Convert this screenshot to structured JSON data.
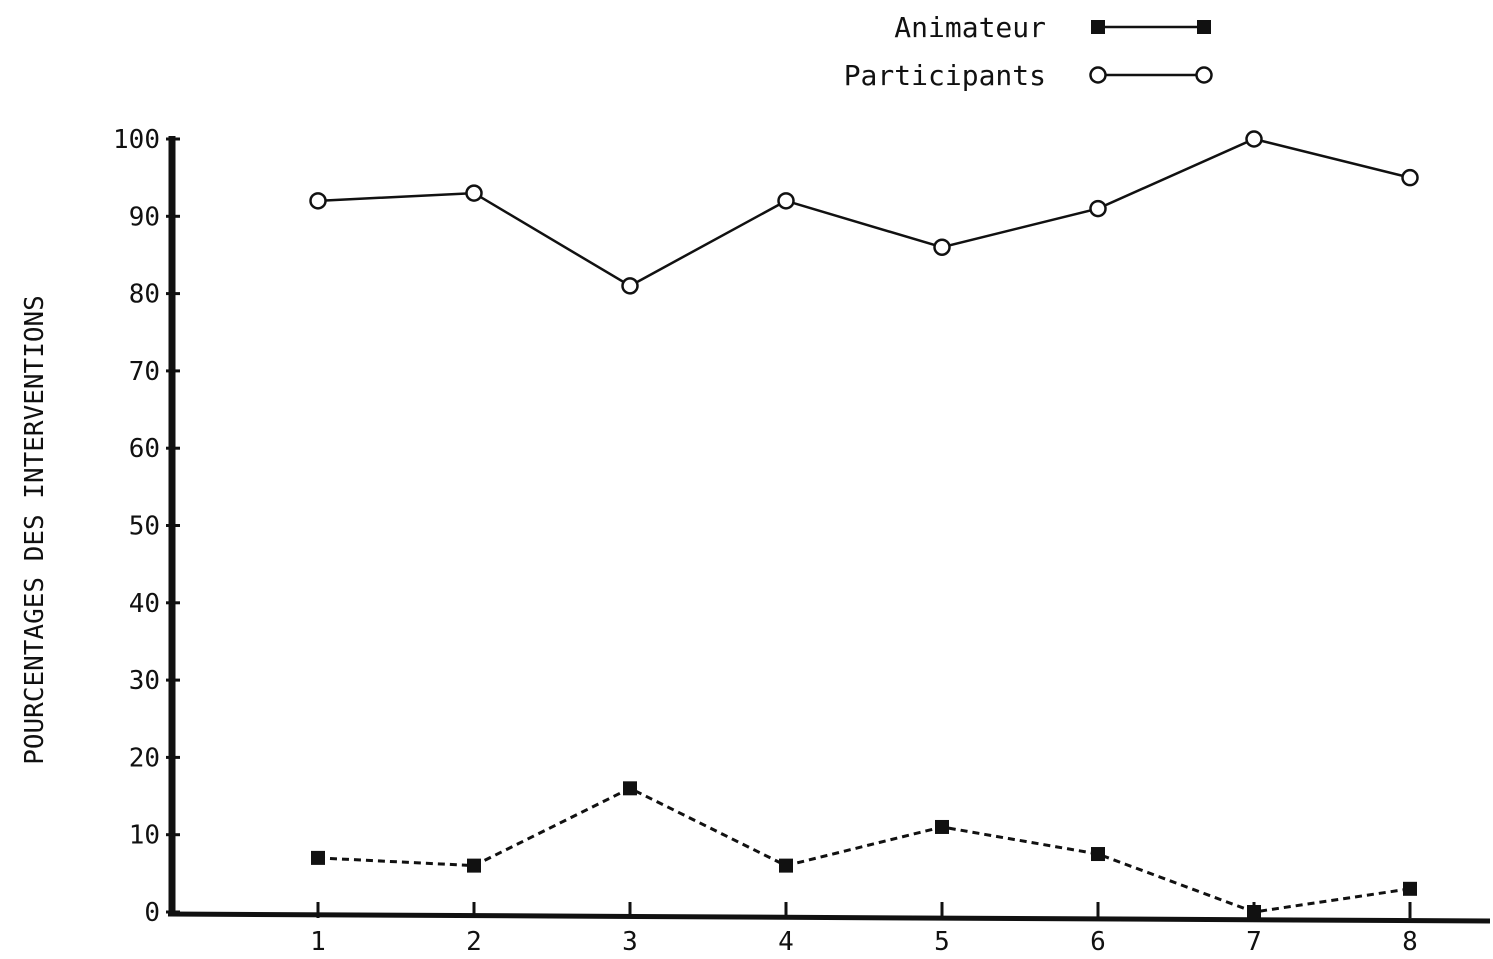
{
  "chart_data": {
    "type": "line",
    "title": "",
    "xlabel": "",
    "ylabel": "POURCENTAGES DES INTERVENTIONS",
    "x": [
      1,
      2,
      3,
      4,
      5,
      6,
      7,
      8
    ],
    "x_tick_labels": [
      "1",
      "2",
      "3",
      "4",
      "5",
      "6",
      "7",
      "8"
    ],
    "y_tick_labels": [
      "0",
      "10",
      "20",
      "30",
      "40",
      "50",
      "60",
      "70",
      "80",
      "90",
      "100"
    ],
    "ylim": [
      0,
      100
    ],
    "grid": false,
    "legend_position": "top-right",
    "series": [
      {
        "name": "Animateur",
        "marker": "filled-square",
        "line_style": "dashed",
        "values": [
          7,
          6,
          16,
          6,
          11,
          7.5,
          0,
          3
        ]
      },
      {
        "name": "Participants",
        "marker": "open-circle",
        "line_style": "solid",
        "values": [
          92,
          93,
          81,
          92,
          86,
          91,
          100,
          95
        ]
      }
    ],
    "colors": {
      "ink": "#111111",
      "background": "#ffffff"
    }
  }
}
